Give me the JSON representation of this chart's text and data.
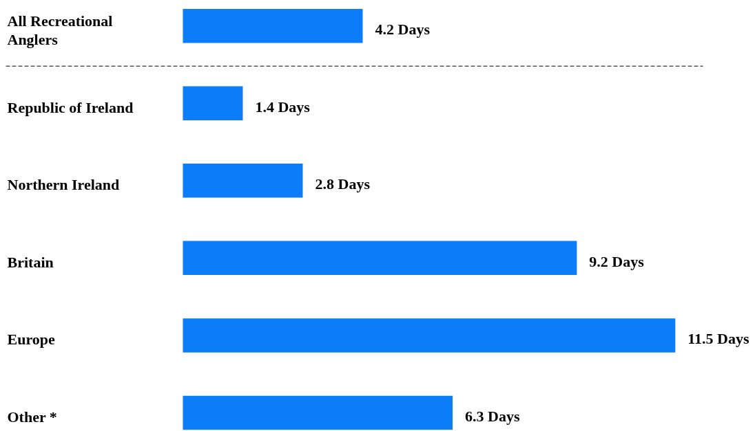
{
  "chart_data": {
    "type": "bar",
    "orientation": "horizontal",
    "categories": [
      "All Recreational Anglers",
      "Republic of Ireland",
      "Northern Ireland",
      "Britain",
      "Europe",
      "Other *"
    ],
    "values": [
      4.2,
      1.4,
      2.8,
      9.2,
      11.5,
      6.3
    ],
    "color": "#0b7df8",
    "value_labels": [
      "4.2 Days",
      "1.4 Days",
      "2.8 Days",
      "9.2 Days",
      "11.5 Days",
      "6.3 Days"
    ],
    "grid": false,
    "tick_labels": "y"
  }
}
